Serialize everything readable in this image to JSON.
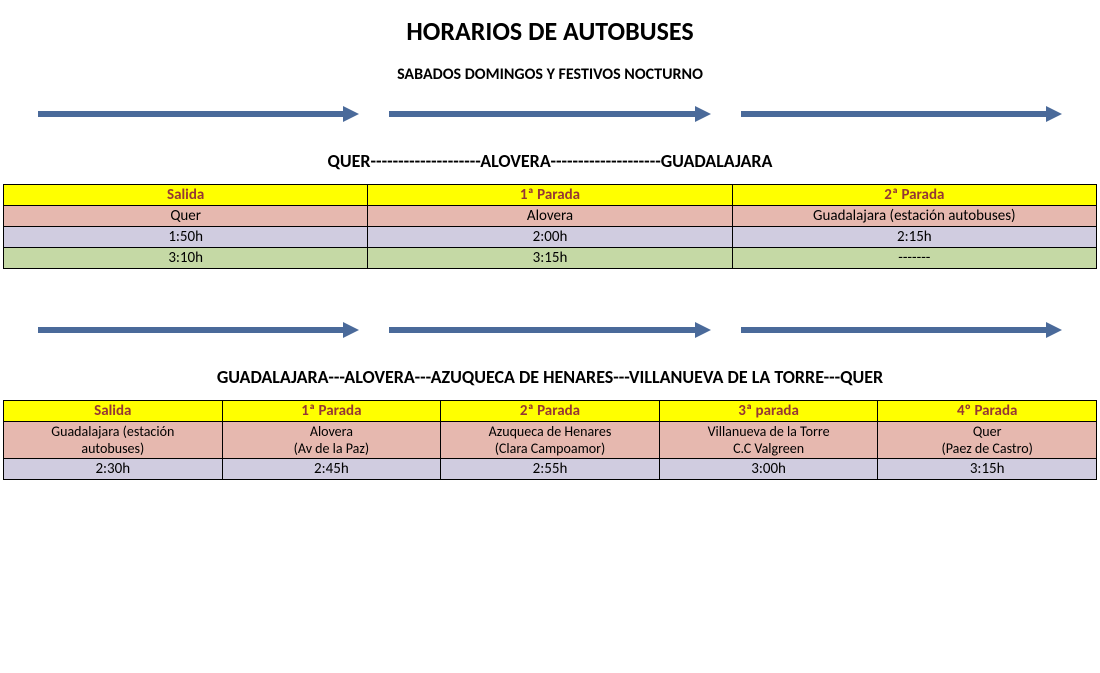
{
  "title": "HORARIOS DE AUTOBUSES",
  "subtitle": "SABADOS DOMINGOS Y FESTIVOS NOCTURNO",
  "colors": {
    "header_bg": "#ffff00",
    "header_fg": "#953734",
    "row_a_bg": "#e6b8af",
    "row_b_bg": "#d0cce0",
    "row_c_bg": "#c5d9a5",
    "border": "#000000",
    "arrow": "#4a6a9a"
  },
  "route1": {
    "title": "QUER--------------------ALOVERA--------------------GUADALAJARA",
    "headers": [
      "Salida",
      "1ª Parada",
      "2ª Parada"
    ],
    "locations": [
      "Quer",
      "Alovera",
      "Guadalajara (estación autobuses)"
    ],
    "rows": [
      [
        "1:50h",
        "2:00h",
        "2:15h"
      ],
      [
        "3:10h",
        "3:15h",
        "-------"
      ]
    ]
  },
  "route2": {
    "title": "GUADALAJARA---ALOVERA---AZUQUECA DE HENARES---VILLANUEVA DE LA TORRE---QUER",
    "headers": [
      "Salida",
      "1ª Parada",
      "2ª Parada",
      "3ª parada",
      "4º Parada"
    ],
    "locations_l1": [
      "Guadalajara (estación",
      "Alovera",
      "Azuqueca de Henares",
      "Villanueva de la Torre",
      "Quer"
    ],
    "locations_l2": [
      "autobuses)",
      "(Av de la Paz)",
      "(Clara Campoamor)",
      "C.C Valgreen",
      "(Paez de Castro)"
    ],
    "rows": [
      [
        "2:30h",
        "2:45h",
        "2:55h",
        "3:00h",
        "3:15h"
      ]
    ]
  }
}
